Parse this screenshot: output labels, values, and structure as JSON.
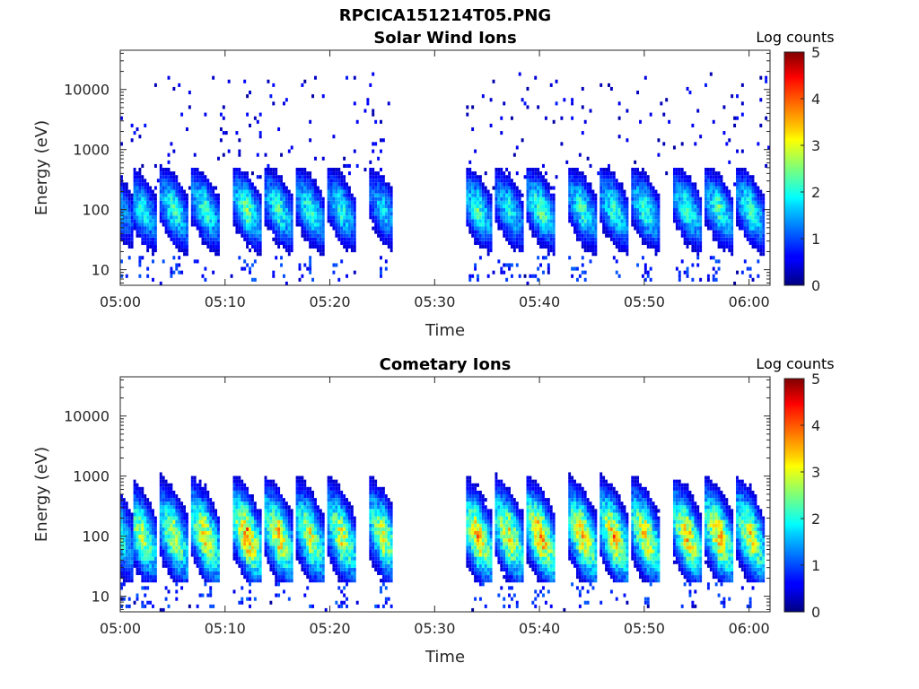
{
  "figure": {
    "title": "RPCICA151214T05.PNG"
  },
  "chart_data": [
    {
      "type": "heatmap",
      "title": "Solar Wind Ions",
      "xlabel": "Time",
      "ylabel": "Energy (eV)",
      "xlim": [
        "05:00",
        "06:02"
      ],
      "ylim": [
        5.5,
        45000
      ],
      "yscale": "log",
      "x_ticks": [
        "05:00",
        "05:10",
        "05:20",
        "05:30",
        "05:40",
        "05:50",
        "06:00"
      ],
      "y_ticks": [
        "10",
        "100",
        "1000",
        "10000"
      ],
      "colorbar": {
        "label": "Log counts",
        "min": 0,
        "max": 5,
        "ticks": [
          "0",
          "1",
          "2",
          "3",
          "4",
          "5"
        ],
        "colormap": "jet"
      },
      "grid": false,
      "data_gap": [
        "05:26",
        "05:33"
      ],
      "bursts": [
        {
          "center": "05:00",
          "peak_log_counts": 1.5
        },
        {
          "center": "05:02",
          "peak_log_counts": 2.0
        },
        {
          "center": "05:05",
          "peak_log_counts": 2.2
        },
        {
          "center": "05:08",
          "peak_log_counts": 2.2
        },
        {
          "center": "05:12",
          "peak_log_counts": 2.4
        },
        {
          "center": "05:15",
          "peak_log_counts": 2.2
        },
        {
          "center": "05:18",
          "peak_log_counts": 2.2
        },
        {
          "center": "05:21",
          "peak_log_counts": 2.0
        },
        {
          "center": "05:25",
          "peak_log_counts": 1.8
        },
        {
          "center": "05:34",
          "peak_log_counts": 2.2
        },
        {
          "center": "05:37",
          "peak_log_counts": 2.0
        },
        {
          "center": "05:40",
          "peak_log_counts": 2.4
        },
        {
          "center": "05:44",
          "peak_log_counts": 2.2
        },
        {
          "center": "05:47",
          "peak_log_counts": 2.2
        },
        {
          "center": "05:50",
          "peak_log_counts": 2.2
        },
        {
          "center": "05:54",
          "peak_log_counts": 2.2
        },
        {
          "center": "05:57",
          "peak_log_counts": 2.2
        },
        {
          "center": "06:00",
          "peak_log_counts": 2.2
        }
      ]
    },
    {
      "type": "heatmap",
      "title": "Cometary Ions",
      "xlabel": "Time",
      "ylabel": "Energy (eV)",
      "xlim": [
        "05:00",
        "06:02"
      ],
      "ylim": [
        5.5,
        45000
      ],
      "yscale": "log",
      "x_ticks": [
        "05:00",
        "05:10",
        "05:20",
        "05:30",
        "05:40",
        "05:50",
        "06:00"
      ],
      "y_ticks": [
        "10",
        "100",
        "1000",
        "10000"
      ],
      "colorbar": {
        "label": "Log counts",
        "min": 0,
        "max": 5,
        "ticks": [
          "0",
          "1",
          "2",
          "3",
          "4",
          "5"
        ],
        "colormap": "jet"
      },
      "grid": false,
      "data_gap": [
        "05:26",
        "05:33"
      ],
      "bursts": [
        {
          "center": "05:00",
          "peak_log_counts": 2.0
        },
        {
          "center": "05:02",
          "peak_log_counts": 2.8
        },
        {
          "center": "05:05",
          "peak_log_counts": 2.9
        },
        {
          "center": "05:08",
          "peak_log_counts": 3.2
        },
        {
          "center": "05:12",
          "peak_log_counts": 3.6
        },
        {
          "center": "05:15",
          "peak_log_counts": 3.3
        },
        {
          "center": "05:18",
          "peak_log_counts": 3.0
        },
        {
          "center": "05:21",
          "peak_log_counts": 3.0
        },
        {
          "center": "05:25",
          "peak_log_counts": 3.0
        },
        {
          "center": "05:34",
          "peak_log_counts": 3.4
        },
        {
          "center": "05:37",
          "peak_log_counts": 3.2
        },
        {
          "center": "05:40",
          "peak_log_counts": 3.6
        },
        {
          "center": "05:44",
          "peak_log_counts": 3.4
        },
        {
          "center": "05:47",
          "peak_log_counts": 3.4
        },
        {
          "center": "05:50",
          "peak_log_counts": 3.3
        },
        {
          "center": "05:54",
          "peak_log_counts": 3.3
        },
        {
          "center": "05:57",
          "peak_log_counts": 3.4
        },
        {
          "center": "06:00",
          "peak_log_counts": 3.2
        }
      ]
    }
  ]
}
